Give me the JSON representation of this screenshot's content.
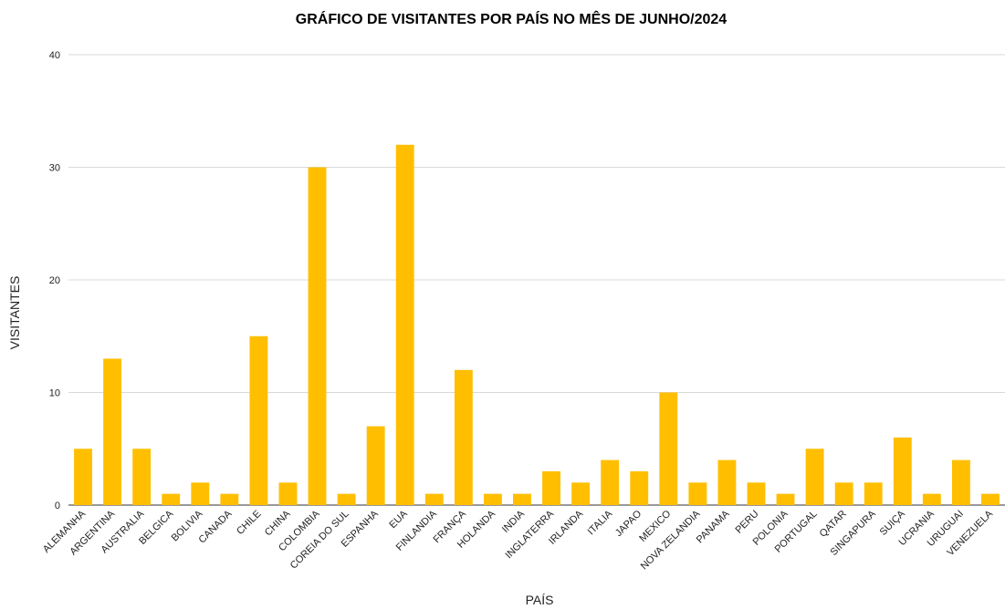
{
  "chart_data": {
    "type": "bar",
    "title": "GRÁFICO DE VISITANTES POR PAÍS NO MÊS DE JUNHO/2024",
    "xlabel": "PAÍS",
    "ylabel": "VISITANTES",
    "ylim": [
      0,
      40
    ],
    "yticks": [
      0,
      10,
      20,
      30,
      40
    ],
    "grid": true,
    "bar_color": "#FFBF00",
    "categories": [
      "ALEMANHA",
      "ARGENTINA",
      "AUSTRALIA",
      "BELGICA",
      "BOLIVIA",
      "CANADA",
      "CHILE",
      "CHINA",
      "COLOMBIA",
      "COREIA DO SUL",
      "ESPANHA",
      "EUA",
      "FINLANDIA",
      "FRANÇA",
      "HOLANDA",
      "INDIA",
      "INGLATERRA",
      "IRLANDA",
      "ITALIA",
      "JAPAO",
      "MEXICO",
      "NOVA ZELANDIA",
      "PANAMA",
      "PERU",
      "POLONIA",
      "PORTUGAL",
      "QATAR",
      "SINGAPURA",
      "SUIÇA",
      "UCRANIA",
      "URUGUAI",
      "VENEZUELA"
    ],
    "values": [
      5,
      13,
      5,
      1,
      2,
      1,
      15,
      2,
      30,
      1,
      7,
      32,
      1,
      12,
      1,
      1,
      3,
      2,
      4,
      3,
      10,
      2,
      4,
      2,
      1,
      5,
      2,
      2,
      6,
      1,
      4,
      1
    ]
  }
}
